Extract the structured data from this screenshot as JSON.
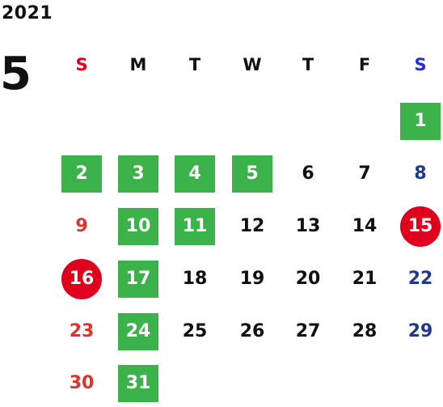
{
  "header": {
    "year": "2021",
    "month": "5"
  },
  "weekdays": [
    "S",
    "M",
    "T",
    "W",
    "T",
    "F",
    "S"
  ],
  "colors": {
    "sunday_header": "#e0001d",
    "saturday_header": "#1d2fd1",
    "sunday_number": "#e0312c",
    "saturday_number": "#1f3a8c",
    "weekday_number": "#111111",
    "highlight_green": "#3cb34a",
    "holiday_red": "#e0001d"
  },
  "days": [
    {
      "label": "1",
      "style": "green"
    },
    {
      "label": "2",
      "style": "green"
    },
    {
      "label": "3",
      "style": "green"
    },
    {
      "label": "4",
      "style": "green"
    },
    {
      "label": "5",
      "style": "green"
    },
    {
      "label": "6",
      "style": "plain"
    },
    {
      "label": "7",
      "style": "plain"
    },
    {
      "label": "8",
      "style": "sat"
    },
    {
      "label": "9",
      "style": "sun"
    },
    {
      "label": "10",
      "style": "green"
    },
    {
      "label": "11",
      "style": "green"
    },
    {
      "label": "12",
      "style": "plain"
    },
    {
      "label": "13",
      "style": "plain"
    },
    {
      "label": "14",
      "style": "plain"
    },
    {
      "label": "15",
      "style": "circle"
    },
    {
      "label": "16",
      "style": "circle"
    },
    {
      "label": "17",
      "style": "green"
    },
    {
      "label": "18",
      "style": "plain"
    },
    {
      "label": "19",
      "style": "plain"
    },
    {
      "label": "20",
      "style": "plain"
    },
    {
      "label": "21",
      "style": "plain"
    },
    {
      "label": "22",
      "style": "sat"
    },
    {
      "label": "23",
      "style": "sun"
    },
    {
      "label": "24",
      "style": "green"
    },
    {
      "label": "25",
      "style": "plain"
    },
    {
      "label": "26",
      "style": "plain"
    },
    {
      "label": "27",
      "style": "plain"
    },
    {
      "label": "28",
      "style": "plain"
    },
    {
      "label": "29",
      "style": "sat"
    },
    {
      "label": "30",
      "style": "sun"
    },
    {
      "label": "31",
      "style": "green"
    }
  ]
}
